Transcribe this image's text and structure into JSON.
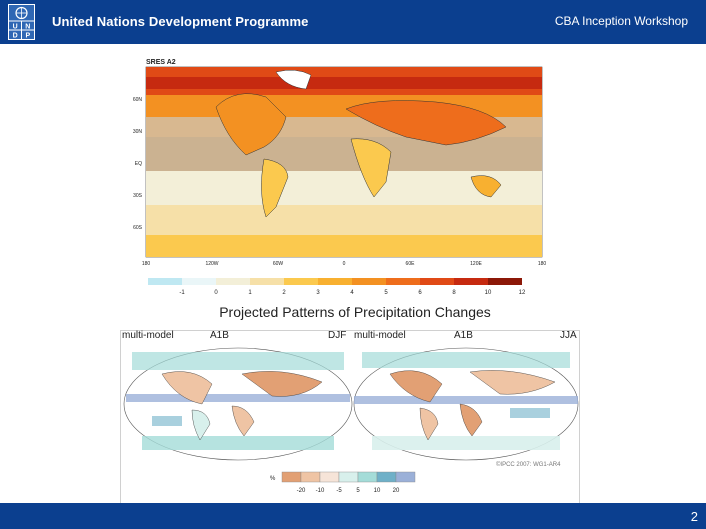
{
  "header": {
    "org": "United Nations Development Programme",
    "logo_letters": [
      "U",
      "N",
      "D",
      "P"
    ],
    "workshop": "CBA Inception Workshop"
  },
  "footer": {
    "page_number": "2"
  },
  "temperature_map": {
    "title": "SRES A2",
    "lat_labels": [
      "60N",
      "30N",
      "EQ",
      "30S",
      "60S"
    ],
    "lon_labels": [
      "180",
      "120W",
      "60W",
      "0",
      "60E",
      "120E",
      "180"
    ],
    "colorbar_labels": [
      "-1",
      "0",
      "1",
      "2",
      "3",
      "4",
      "5",
      "6",
      "8",
      "10",
      "12"
    ],
    "colors": [
      "#bfe8f2",
      "#eaf6f8",
      "#f3efd8",
      "#f6e0a8",
      "#fbc94e",
      "#f8b030",
      "#f39122",
      "#ee6d1c",
      "#e04a16",
      "#c62a10",
      "#8c1808"
    ]
  },
  "precip": {
    "title": "Projected Patterns of Precipitation Changes",
    "left_panel": {
      "model": "multi-model",
      "scenario": "A1B",
      "season": "DJF"
    },
    "right_panel": {
      "model": "multi-model",
      "scenario": "A1B",
      "season": "JJA"
    },
    "key_unit": "%",
    "key_labels": [
      "-20",
      "-10",
      "-5",
      "5",
      "10",
      "20"
    ],
    "key_colors": [
      "#e2a074",
      "#efc4a4",
      "#f6e4d8",
      "#d8f0ec",
      "#a4dcd8",
      "#6fb0c8",
      "#9bb0d8"
    ],
    "credit": "©IPCC 2007: WG1-AR4"
  }
}
